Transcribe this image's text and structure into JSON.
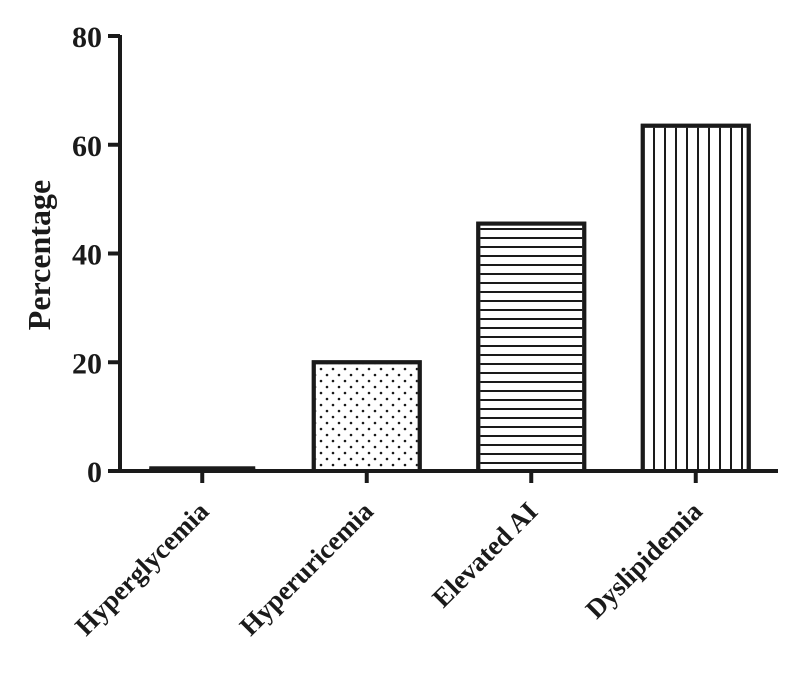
{
  "chart_data": {
    "type": "bar",
    "title": "",
    "xlabel": "",
    "ylabel": "Percentage",
    "ylim": [
      0,
      80
    ],
    "yticks": [
      0,
      20,
      40,
      60,
      80
    ],
    "categories": [
      "Hyperglycemia",
      "Hyperuricemia",
      "Elevated AI",
      "Dyslipidemia"
    ],
    "values": [
      0.5,
      20,
      45.5,
      63.5
    ],
    "fill_patterns": [
      "solid",
      "dots",
      "horizontal-lines",
      "vertical-lines"
    ],
    "grid": false,
    "legend": "none",
    "colors": {
      "ink": "#1a1a1a",
      "background": "#ffffff"
    }
  }
}
